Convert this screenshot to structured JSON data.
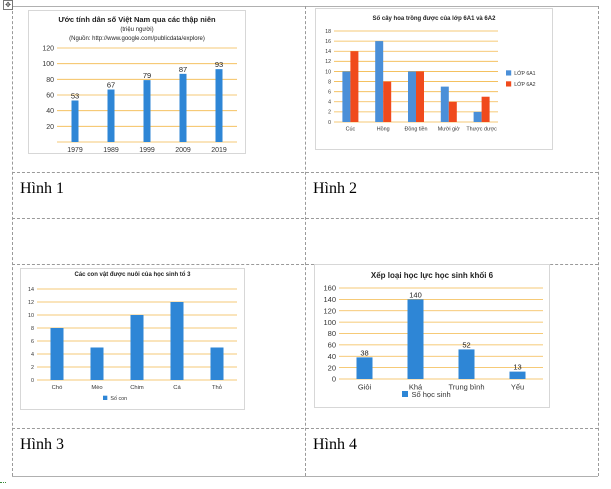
{
  "captions": [
    "Hình 1",
    "Hình 2",
    "Hình 3",
    "Hình 4"
  ],
  "chart_data": [
    {
      "type": "bar",
      "title": "Ước tính dân số Việt Nam qua các thập niên",
      "subtitle": "(triệu người)",
      "source": "(Nguồn: http://www.google.com/publicdata/explore)",
      "categories": [
        "1979",
        "1989",
        "1999",
        "2009",
        "2019"
      ],
      "values": [
        53,
        67,
        79,
        87,
        93
      ],
      "data_labels": [
        "53",
        "67",
        "79",
        "87",
        "93"
      ],
      "yticks": [
        "20",
        "40",
        "60",
        "80",
        "100",
        "120"
      ],
      "ylim": [
        0,
        120
      ],
      "colors": {
        "bar": "#2e86d6",
        "grid": "#f3b84a"
      }
    },
    {
      "type": "bar",
      "title": "Số cây hoa trồng được của lớp 6A1 và 6A2",
      "categories": [
        "Cúc",
        "Hồng",
        "Đồng tiền",
        "Mười giờ",
        "Thược dược"
      ],
      "series": [
        {
          "name": "LỚP 6A1",
          "values": [
            10,
            16,
            10,
            7,
            2
          ]
        },
        {
          "name": "LỚP 6A2",
          "values": [
            14,
            8,
            10,
            4,
            5
          ]
        }
      ],
      "yticks": [
        "0",
        "2",
        "4",
        "6",
        "8",
        "10",
        "12",
        "14",
        "16",
        "18"
      ],
      "ylim": [
        0,
        18
      ],
      "legend": "right",
      "colors": {
        "s1": "#4a8fd8",
        "s2": "#f04a1c",
        "grid": "#f3b84a"
      }
    },
    {
      "type": "bar",
      "title": "Các con vật được nuôi của học sinh tổ 3",
      "categories": [
        "Chó",
        "Mèo",
        "Chim",
        "Cá",
        "Thỏ"
      ],
      "series": [
        {
          "name": "Số con",
          "values": [
            8,
            5,
            10,
            12,
            5
          ]
        }
      ],
      "yticks": [
        "0",
        "2",
        "4",
        "6",
        "8",
        "10",
        "12",
        "14"
      ],
      "ylim": [
        0,
        14
      ],
      "legend": "bottom",
      "colors": {
        "bar": "#2e86d6",
        "grid": "#f3b84a"
      }
    },
    {
      "type": "bar",
      "title": "Xếp loại học lực học sinh khối 6",
      "categories": [
        "Giỏi",
        "Khá",
        "Trung bình",
        "Yếu"
      ],
      "series": [
        {
          "name": "Số học sinh",
          "values": [
            38,
            140,
            52,
            13
          ]
        }
      ],
      "data_labels": [
        "38",
        "140",
        "52",
        "13"
      ],
      "yticks": [
        "0",
        "20",
        "40",
        "60",
        "80",
        "100",
        "120",
        "140",
        "160"
      ],
      "ylim": [
        0,
        160
      ],
      "legend": "bottom",
      "colors": {
        "bar": "#2e86d6",
        "grid": "#f3b84a"
      }
    }
  ]
}
